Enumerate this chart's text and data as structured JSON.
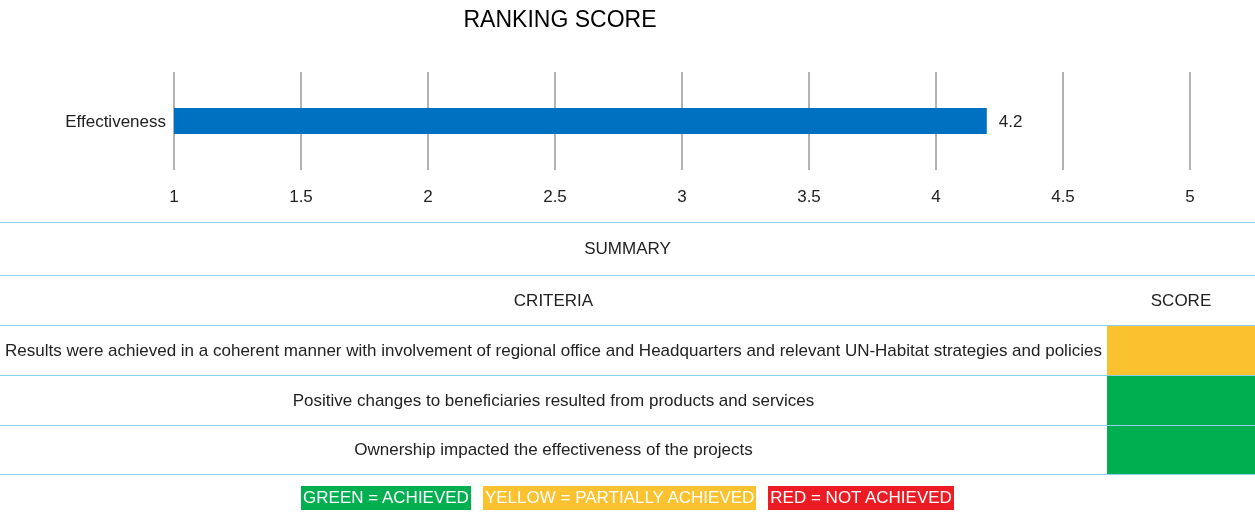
{
  "chart_data": [
    {
      "type": "bar",
      "title": "RANKING SCORE",
      "orientation": "horizontal",
      "categories": [
        "Effectiveness"
      ],
      "values": [
        4.2
      ],
      "color": "#0070c0",
      "xlim": [
        1,
        5
      ],
      "xticks": [
        1,
        1.5,
        2,
        2.5,
        3,
        3.5,
        4,
        4.5,
        5
      ],
      "grid": "x",
      "data_labels": true
    },
    {
      "type": "other",
      "title": "SUMMARY",
      "annotations": [
        "CRITERIA",
        "SCORE"
      ],
      "categories": [
        "Results were achieved in a coherent manner with involvement of regional office and Headquarters and relevant UN-Habitat strategies and policies",
        "Positive changes to beneficiaries resulted from products and services",
        "Ownership impacted the effectiveness of the projects"
      ],
      "colors": [
        "#fbc22f",
        "#00b050",
        "#00b050"
      ]
    },
    {
      "type": "other",
      "categories": [
        "GREEN = ACHIEVED",
        "YELLOW = PARTIALLY ACHIEVED",
        "RED = NOT ACHIEVED"
      ],
      "colors": [
        "#00b050",
        "#fbc22f",
        "#ed1c24"
      ]
    }
  ]
}
